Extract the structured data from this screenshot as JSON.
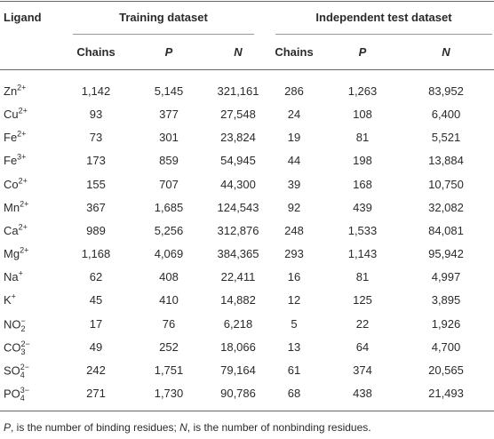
{
  "table": {
    "header": {
      "ligand": "Ligand",
      "groups": [
        "Training dataset",
        "Independent test dataset"
      ],
      "columns": [
        {
          "text": "Chains",
          "italic": false
        },
        {
          "text": "P",
          "italic": true
        },
        {
          "text": "N",
          "italic": true
        },
        {
          "text": "Chains",
          "italic": false
        },
        {
          "text": "P",
          "italic": true
        },
        {
          "text": "N",
          "italic": true
        }
      ]
    },
    "rows": [
      {
        "ligand": {
          "base": "Zn",
          "sup": "2+"
        },
        "cells": [
          "1,142",
          "5,145",
          "321,161",
          "286",
          "1,263",
          "83,952"
        ]
      },
      {
        "ligand": {
          "base": "Cu",
          "sup": "2+"
        },
        "cells": [
          "93",
          "377",
          "27,548",
          "24",
          "108",
          "6,400"
        ]
      },
      {
        "ligand": {
          "base": "Fe",
          "sup": "2+"
        },
        "cells": [
          "73",
          "301",
          "23,824",
          "19",
          "81",
          "5,521"
        ]
      },
      {
        "ligand": {
          "base": "Fe",
          "sup": "3+"
        },
        "cells": [
          "173",
          "859",
          "54,945",
          "44",
          "198",
          "13,884"
        ]
      },
      {
        "ligand": {
          "base": "Co",
          "sup": "2+"
        },
        "cells": [
          "155",
          "707",
          "44,300",
          "39",
          "168",
          "10,750"
        ]
      },
      {
        "ligand": {
          "base": "Mn",
          "sup": "2+"
        },
        "cells": [
          "367",
          "1,685",
          "124,543",
          "92",
          "439",
          "32,082"
        ]
      },
      {
        "ligand": {
          "base": "Ca",
          "sup": "2+"
        },
        "cells": [
          "989",
          "5,256",
          "312,876",
          "248",
          "1,533",
          "84,081"
        ]
      },
      {
        "ligand": {
          "base": "Mg",
          "sup": "2+"
        },
        "cells": [
          "1,168",
          "4,069",
          "384,365",
          "293",
          "1,143",
          "95,942"
        ]
      },
      {
        "ligand": {
          "base": "Na",
          "sup": "+"
        },
        "cells": [
          "62",
          "408",
          "22,411",
          "16",
          "81",
          "4,997"
        ]
      },
      {
        "ligand": {
          "base": "K",
          "sup": "+"
        },
        "cells": [
          "45",
          "410",
          "14,882",
          "12",
          "125",
          "3,895"
        ]
      },
      {
        "ligand": {
          "base": "NO",
          "sub": "2",
          "sup": "−"
        },
        "cells": [
          "17",
          "76",
          "6,218",
          "5",
          "22",
          "1,926"
        ]
      },
      {
        "ligand": {
          "base": "CO",
          "sub": "3",
          "sup": "2−"
        },
        "cells": [
          "49",
          "252",
          "18,066",
          "13",
          "64",
          "4,700"
        ]
      },
      {
        "ligand": {
          "base": "SO",
          "sub": "4",
          "sup": "2−"
        },
        "cells": [
          "242",
          "1,751",
          "79,164",
          "61",
          "374",
          "20,565"
        ]
      },
      {
        "ligand": {
          "base": "PO",
          "sub": "4",
          "sup": "3−"
        },
        "cells": [
          "271",
          "1,730",
          "90,786",
          "68",
          "438",
          "21,493"
        ]
      }
    ],
    "footnote": [
      {
        "text": "P",
        "italic": true
      },
      {
        "text": ", is the number of binding residues; ",
        "italic": false
      },
      {
        "text": "N",
        "italic": true
      },
      {
        "text": ", is the number of nonbinding residues.",
        "italic": false
      }
    ]
  }
}
